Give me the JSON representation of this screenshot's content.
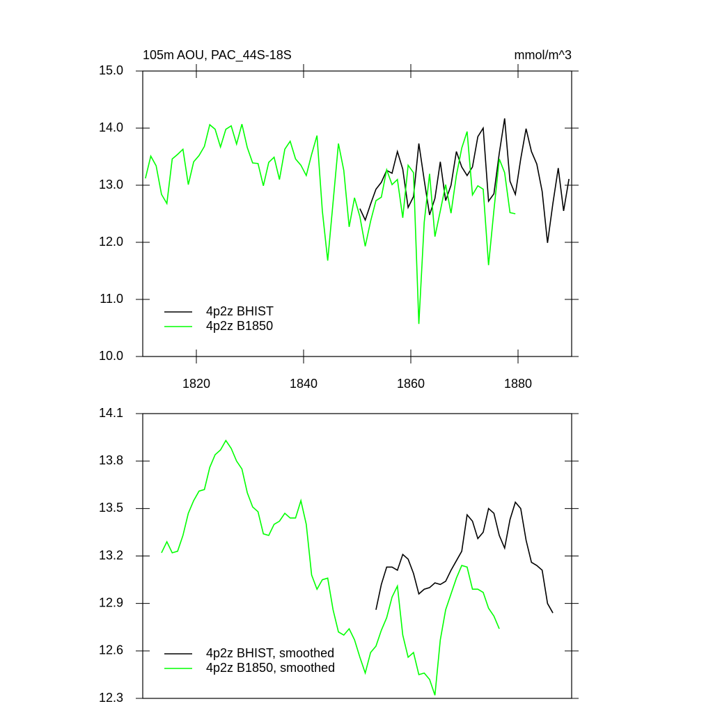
{
  "chart_data": [
    {
      "type": "line",
      "title": "105m AOU, PAC_44S-18S",
      "right_title": "mmol/m^3",
      "xlim": [
        1810,
        1890
      ],
      "xticks": [
        1820,
        1840,
        1860,
        1880
      ],
      "ylim": [
        10,
        15
      ],
      "yticks": [
        {
          "value": 10,
          "label": "10.0"
        },
        {
          "value": 11,
          "label": "11.0"
        },
        {
          "value": 12,
          "label": "12.0"
        },
        {
          "value": 13,
          "label": "13.0"
        },
        {
          "value": 14,
          "label": "14.0"
        },
        {
          "value": 15,
          "label": "15.0"
        }
      ],
      "legend": "lower left",
      "series": [
        {
          "name": "4p2z BHIST",
          "color": "#000000",
          "x": [
            1850.5,
            1851.5,
            1852.5,
            1853.5,
            1854.5,
            1855.5,
            1856.5,
            1857.5,
            1858.5,
            1859.5,
            1860.5,
            1861.5,
            1862.5,
            1863.5,
            1864.5,
            1865.5,
            1866.5,
            1867.5,
            1868.5,
            1869.5,
            1870.5,
            1871.5,
            1872.5,
            1873.5,
            1874.5,
            1875.5,
            1876.5,
            1877.5,
            1878.5,
            1879.5,
            1880.5,
            1881.5,
            1882.5,
            1883.5,
            1884.5,
            1885.5,
            1886.5,
            1887.5,
            1888.5,
            1889.5
          ],
          "values": [
            12.59,
            12.39,
            12.67,
            12.93,
            13.05,
            13.26,
            13.21,
            13.59,
            13.28,
            12.61,
            12.8,
            13.73,
            13.09,
            12.48,
            12.77,
            13.41,
            12.73,
            13.0,
            13.59,
            13.32,
            13.17,
            13.32,
            13.85,
            14.0,
            12.72,
            12.85,
            13.56,
            14.17,
            13.07,
            12.84,
            13.46,
            13.99,
            13.59,
            13.37,
            12.89,
            11.99,
            12.68,
            13.3,
            12.55,
            13.11
          ]
        },
        {
          "name": "4p2z B1850",
          "color": "#00ff00",
          "x": [
            1810.5,
            1811.5,
            1812.5,
            1813.5,
            1814.5,
            1815.5,
            1816.5,
            1817.5,
            1818.5,
            1819.5,
            1820.5,
            1821.5,
            1822.5,
            1823.5,
            1824.5,
            1825.5,
            1826.5,
            1827.5,
            1828.5,
            1829.5,
            1830.5,
            1831.5,
            1832.5,
            1833.5,
            1834.5,
            1835.5,
            1836.5,
            1837.5,
            1838.5,
            1839.5,
            1840.5,
            1841.5,
            1842.5,
            1843.5,
            1844.5,
            1845.5,
            1846.5,
            1847.5,
            1848.5,
            1849.5,
            1850.5,
            1851.5,
            1852.5,
            1853.5,
            1854.5,
            1855.5,
            1856.5,
            1857.5,
            1858.5,
            1859.5,
            1860.5,
            1861.5,
            1862.5,
            1863.5,
            1864.5,
            1865.5,
            1866.5,
            1867.5,
            1868.5,
            1869.5,
            1870.5,
            1871.5,
            1872.5,
            1873.5,
            1874.5,
            1875.5,
            1876.5,
            1877.5,
            1878.5,
            1879.5
          ],
          "values": [
            13.12,
            13.51,
            13.34,
            12.84,
            12.68,
            13.46,
            13.54,
            13.63,
            13.01,
            13.41,
            13.52,
            13.68,
            14.06,
            13.98,
            13.67,
            13.98,
            14.04,
            13.72,
            14.07,
            13.66,
            13.39,
            13.38,
            12.99,
            13.4,
            13.49,
            13.1,
            13.63,
            13.77,
            13.46,
            13.35,
            13.17,
            13.54,
            13.87,
            12.55,
            11.68,
            12.7,
            13.73,
            13.26,
            12.27,
            12.78,
            12.45,
            11.93,
            12.37,
            12.73,
            12.79,
            13.27,
            13.01,
            13.1,
            12.43,
            13.35,
            13.22,
            10.57,
            12.35,
            13.2,
            12.1,
            12.55,
            13.01,
            12.51,
            13.17,
            13.65,
            13.94,
            12.83,
            12.99,
            12.93,
            11.6,
            12.56,
            13.46,
            13.22,
            12.52,
            12.5
          ]
        }
      ]
    },
    {
      "type": "line",
      "xlim": [
        1810,
        1890
      ],
      "ylim": [
        12.3,
        14.1
      ],
      "yticks": [
        12.3,
        12.6,
        12.9,
        13.2,
        13.5,
        13.8,
        14.1
      ],
      "legend": "lower left",
      "series": [
        {
          "name": "4p2z BHIST, smoothed",
          "color": "#000000",
          "x": [
            1853.5,
            1854.5,
            1855.5,
            1856.5,
            1857.5,
            1858.5,
            1859.5,
            1860.5,
            1861.5,
            1862.5,
            1863.5,
            1864.5,
            1865.5,
            1866.5,
            1867.5,
            1868.5,
            1869.5,
            1870.5,
            1871.5,
            1872.5,
            1873.5,
            1874.5,
            1875.5,
            1876.5,
            1877.5,
            1878.5,
            1879.5,
            1880.5,
            1881.5,
            1882.5,
            1883.5,
            1884.5,
            1885.5,
            1886.5
          ],
          "values": [
            12.86,
            13.02,
            13.13,
            13.13,
            13.11,
            13.21,
            13.18,
            13.09,
            12.96,
            12.99,
            13.0,
            13.03,
            13.02,
            13.04,
            13.11,
            13.17,
            13.23,
            13.46,
            13.42,
            13.31,
            13.35,
            13.5,
            13.47,
            13.33,
            13.25,
            13.43,
            13.54,
            13.5,
            13.3,
            13.16,
            13.14,
            13.11,
            12.9,
            12.84
          ]
        },
        {
          "name": "4p2z B1850, smoothed",
          "color": "#00ff00",
          "x": [
            1813.5,
            1814.5,
            1815.5,
            1816.5,
            1817.5,
            1818.5,
            1819.5,
            1820.5,
            1821.5,
            1822.5,
            1823.5,
            1824.5,
            1825.5,
            1826.5,
            1827.5,
            1828.5,
            1829.5,
            1830.5,
            1831.5,
            1832.5,
            1833.5,
            1834.5,
            1835.5,
            1836.5,
            1837.5,
            1838.5,
            1839.5,
            1840.5,
            1841.5,
            1842.5,
            1843.5,
            1844.5,
            1845.5,
            1846.5,
            1847.5,
            1848.5,
            1849.5,
            1850.5,
            1851.5,
            1852.5,
            1853.5,
            1854.5,
            1855.5,
            1856.5,
            1857.5,
            1858.5,
            1859.5,
            1860.5,
            1861.5,
            1862.5,
            1863.5,
            1864.5,
            1865.5,
            1866.5,
            1867.5,
            1868.5,
            1869.5,
            1870.5,
            1871.5,
            1872.5,
            1873.5,
            1874.5,
            1875.5,
            1876.5
          ],
          "values": [
            13.22,
            13.29,
            13.22,
            13.23,
            13.33,
            13.47,
            13.55,
            13.61,
            13.62,
            13.76,
            13.84,
            13.87,
            13.93,
            13.88,
            13.8,
            13.75,
            13.6,
            13.51,
            13.48,
            13.34,
            13.33,
            13.4,
            13.42,
            13.47,
            13.44,
            13.44,
            13.55,
            13.4,
            13.08,
            12.99,
            13.05,
            13.06,
            12.86,
            12.72,
            12.7,
            12.74,
            12.67,
            12.56,
            12.46,
            12.59,
            12.63,
            12.73,
            12.81,
            12.94,
            13.01,
            12.7,
            12.56,
            12.59,
            12.45,
            12.46,
            12.42,
            12.32,
            12.67,
            12.86,
            12.96,
            13.06,
            13.14,
            13.13,
            12.99,
            12.99,
            12.97,
            12.87,
            12.82,
            12.74
          ]
        }
      ]
    }
  ]
}
